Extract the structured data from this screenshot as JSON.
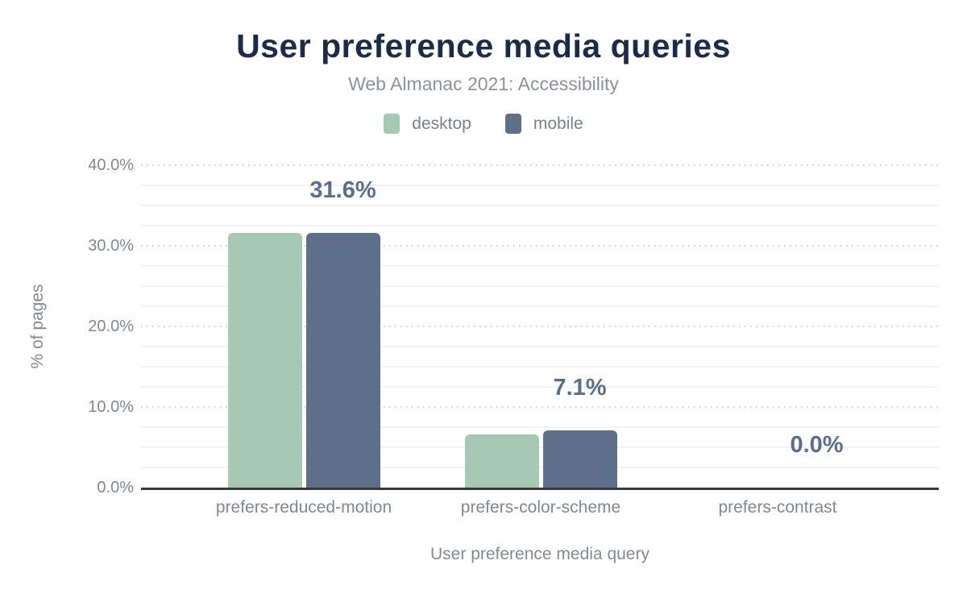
{
  "chart_data": {
    "type": "bar",
    "title": "User preference media queries",
    "subtitle": "Web Almanac 2021: Accessibility",
    "xlabel": "User preference media query",
    "ylabel": "% of pages",
    "categories": [
      "prefers-reduced-motion",
      "prefers-color-scheme",
      "prefers-contrast"
    ],
    "series": [
      {
        "name": "desktop",
        "color": "#a7c8b5",
        "values": [
          31.6,
          6.6,
          0.0
        ]
      },
      {
        "name": "mobile",
        "color": "#5e7089",
        "values": [
          31.6,
          7.1,
          0.0
        ]
      }
    ],
    "data_labels": [
      "31.6%",
      "7.1%",
      "0.0%"
    ],
    "ylim": [
      0,
      40
    ],
    "yticks": [
      0,
      10,
      20,
      30,
      40
    ],
    "ytick_labels": [
      "0.0%",
      "10.0%",
      "20.0%",
      "30.0%",
      "40.0%"
    ],
    "minor_grid_step": 2.5,
    "grid": "horizontal",
    "legend_position": "top"
  },
  "colors": {
    "background": "#ffffff",
    "title": "#1b2b4a",
    "subtitle": "#8b929c",
    "legend_text": "#79828c",
    "axis_text": "#838a94",
    "tick_text": "#7f8792",
    "data_label": "#5a6d90",
    "axis_line": "#37383c",
    "major_grid": "#c9c9c9",
    "minor_grid": "#f2f3f3"
  }
}
